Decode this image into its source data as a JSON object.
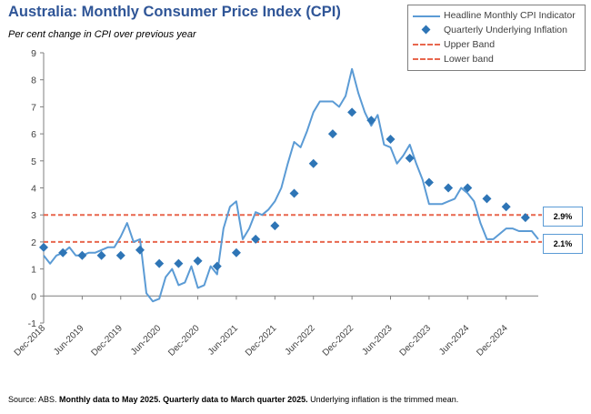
{
  "title": "Australia: Monthly Consumer Price Index (CPI)",
  "subtitle": "Per cent change in CPI over previous year",
  "source": {
    "prefix": "Source: ABS.",
    "bold": "Monthly data to May 2025. Quarterly data to March quarter 2025.",
    "suffix": "Underlying inflation is the trimmed mean."
  },
  "legend": {
    "headline": "Headline Monthly CPI Indicator",
    "underlying": "Quarterly Underlying Inflation",
    "upper": "Upper Band",
    "lower": "Lower band"
  },
  "band_labels": {
    "upper": "2.9%",
    "lower": "2.1%"
  },
  "colors": {
    "headline": "#5b9bd5",
    "underlying": "#2e75b6",
    "band": "#e8674e",
    "title": "#2f5597"
  },
  "chart_data": {
    "type": "line",
    "title": "Australia: Monthly Consumer Price Index (CPI)",
    "ylabel": "Per cent change in CPI over previous year",
    "ylim": [
      -1,
      9
    ],
    "yticks": [
      -1,
      0,
      1,
      2,
      3,
      4,
      5,
      6,
      7,
      8,
      9
    ],
    "xlim": [
      "Dec-2018",
      "May-2025"
    ],
    "x_tick_labels": [
      "Dec-2018",
      "Jun-2019",
      "Dec-2019",
      "Jun-2020",
      "Dec-2020",
      "Jun-2021",
      "Dec-2021",
      "Jun-2022",
      "Dec-2022",
      "Jun-2023",
      "Dec-2023",
      "Jun-2024",
      "Dec-2024"
    ],
    "bands": {
      "upper": 3.0,
      "lower": 2.0
    },
    "series": [
      {
        "name": "Headline Monthly CPI Indicator",
        "kind": "line",
        "start": "Dec-2018",
        "values": [
          1.5,
          1.2,
          1.5,
          1.6,
          1.8,
          1.5,
          1.5,
          1.6,
          1.6,
          1.7,
          1.8,
          1.8,
          2.2,
          2.7,
          2.0,
          2.1,
          0.1,
          -0.2,
          -0.1,
          0.7,
          1.0,
          0.4,
          0.5,
          1.1,
          0.3,
          0.4,
          1.1,
          0.8,
          2.5,
          3.3,
          3.5,
          2.1,
          2.5,
          3.1,
          3.0,
          3.2,
          3.5,
          4.0,
          4.9,
          5.7,
          5.5,
          6.1,
          6.8,
          7.2,
          7.2,
          7.2,
          7.0,
          7.4,
          8.4,
          7.5,
          6.8,
          6.3,
          6.7,
          5.6,
          5.5,
          4.9,
          5.2,
          5.6,
          4.9,
          4.3,
          3.4,
          3.4,
          3.4,
          3.5,
          3.6,
          4.0,
          3.8,
          3.5,
          2.7,
          2.1,
          2.1,
          2.3,
          2.5,
          2.5,
          2.4,
          2.4,
          2.4,
          2.1
        ]
      },
      {
        "name": "Quarterly Underlying Inflation",
        "kind": "scatter",
        "points": [
          {
            "x": "Dec-2018",
            "y": 1.8
          },
          {
            "x": "Mar-2019",
            "y": 1.6
          },
          {
            "x": "Jun-2019",
            "y": 1.5
          },
          {
            "x": "Sep-2019",
            "y": 1.5
          },
          {
            "x": "Dec-2019",
            "y": 1.5
          },
          {
            "x": "Mar-2020",
            "y": 1.7
          },
          {
            "x": "Jun-2020",
            "y": 1.2
          },
          {
            "x": "Sep-2020",
            "y": 1.2
          },
          {
            "x": "Dec-2020",
            "y": 1.3
          },
          {
            "x": "Mar-2021",
            "y": 1.1
          },
          {
            "x": "Jun-2021",
            "y": 1.6
          },
          {
            "x": "Sep-2021",
            "y": 2.1
          },
          {
            "x": "Dec-2021",
            "y": 2.6
          },
          {
            "x": "Mar-2022",
            "y": 3.8
          },
          {
            "x": "Jun-2022",
            "y": 4.9
          },
          {
            "x": "Sep-2022",
            "y": 6.0
          },
          {
            "x": "Dec-2022",
            "y": 6.8
          },
          {
            "x": "Mar-2023",
            "y": 6.5
          },
          {
            "x": "Jun-2023",
            "y": 5.8
          },
          {
            "x": "Sep-2023",
            "y": 5.1
          },
          {
            "x": "Dec-2023",
            "y": 4.2
          },
          {
            "x": "Mar-2024",
            "y": 4.0
          },
          {
            "x": "Jun-2024",
            "y": 4.0
          },
          {
            "x": "Sep-2024",
            "y": 3.6
          },
          {
            "x": "Dec-2024",
            "y": 3.3
          },
          {
            "x": "Mar-2025",
            "y": 2.9
          }
        ]
      }
    ]
  }
}
